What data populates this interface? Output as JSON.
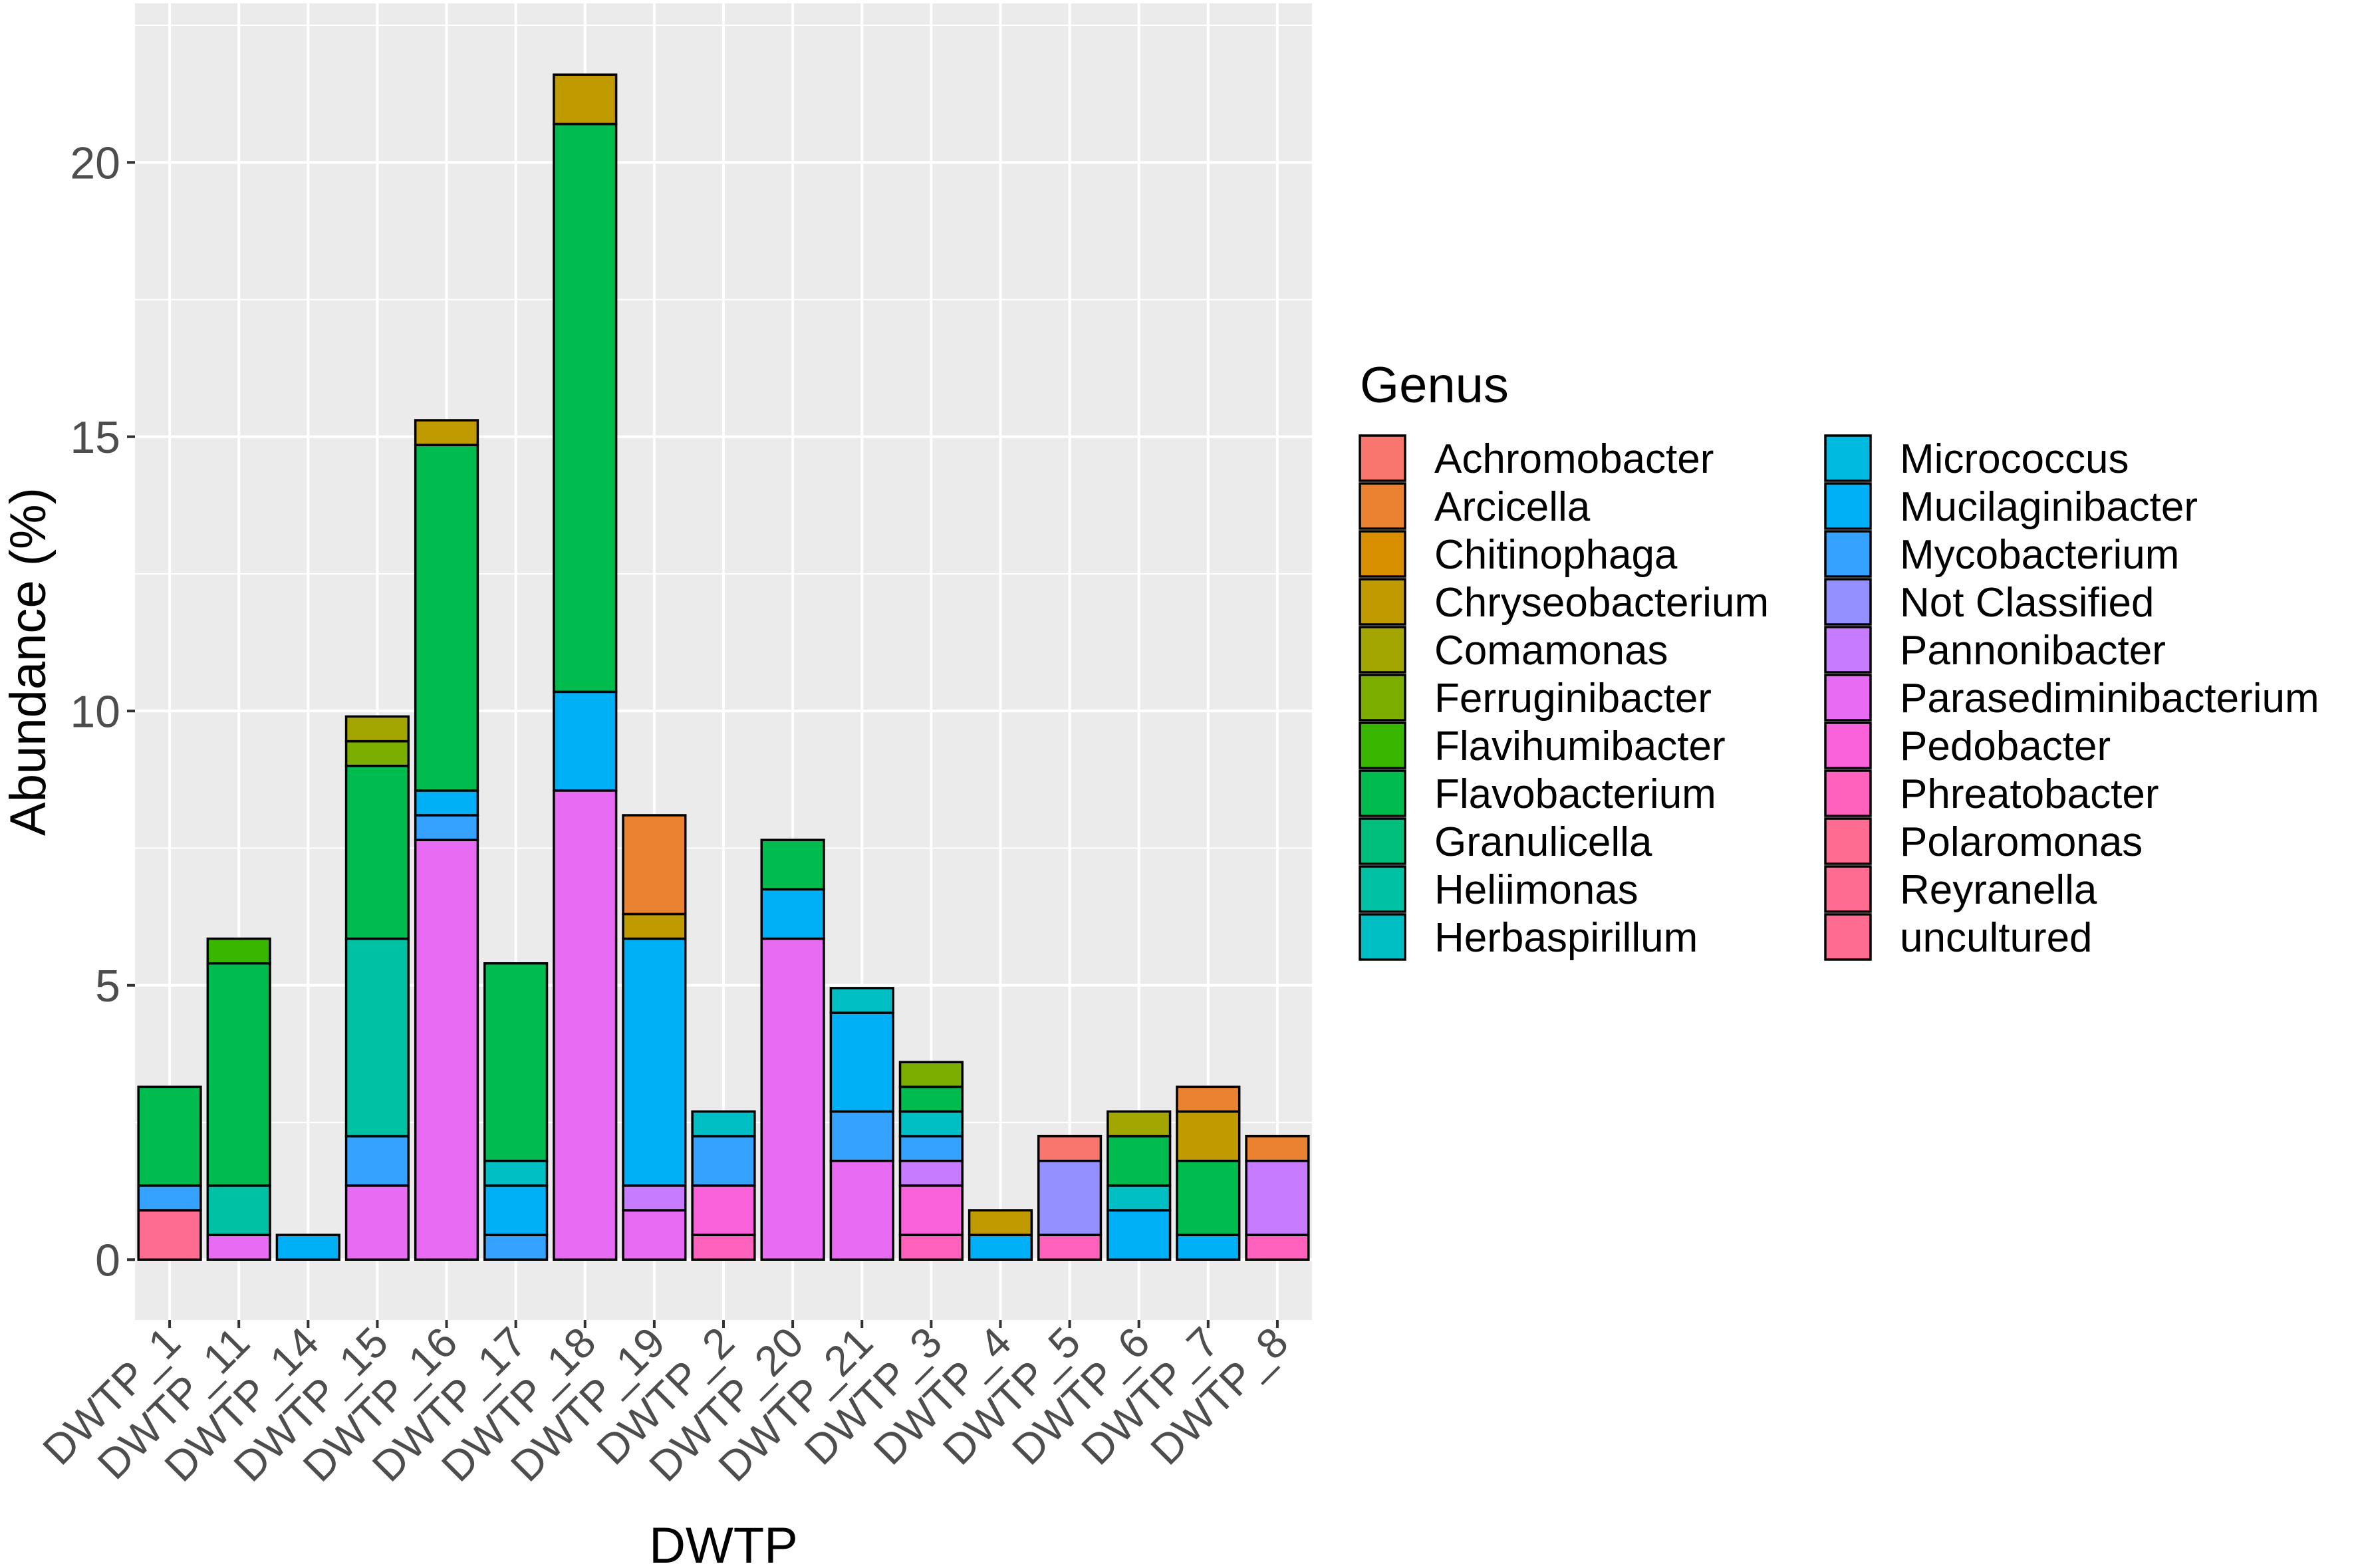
{
  "colors": {
    "panel_background": "#ebebeb",
    "grid_major": "#ffffff",
    "bar_outline": "#000000",
    "axis_text": "#4d4d4d",
    "title_text": "#000000"
  },
  "chart_data": {
    "type": "bar",
    "stacked": true,
    "title": "",
    "xlabel": "DWTP",
    "ylabel": "Abundance (%)",
    "ylim": [
      -1.1,
      22.9
    ],
    "yticks": [
      0,
      5,
      10,
      15,
      20
    ],
    "categories": [
      "DWTP_1",
      "DWTP_11",
      "DWTP_14",
      "DWTP_15",
      "DWTP_16",
      "DWTP_17",
      "DWTP_18",
      "DWTP_19",
      "DWTP_2",
      "DWTP_20",
      "DWTP_21",
      "DWTP_3",
      "DWTP_4",
      "DWTP_5",
      "DWTP_6",
      "DWTP_7",
      "DWTP_8"
    ],
    "legend": {
      "title": "Genus",
      "position": "right",
      "columns": 2
    },
    "series": [
      {
        "name": "Achromobacter",
        "color": "#F8766D",
        "values": [
          0,
          0,
          0,
          0,
          0,
          0,
          0,
          0,
          0,
          0,
          0,
          0,
          0,
          0.45,
          0,
          0,
          0
        ]
      },
      {
        "name": "Arcicella",
        "color": "#EA8331",
        "values": [
          0,
          0,
          0,
          0,
          0,
          0,
          0,
          1.8,
          0,
          0,
          0,
          0,
          0,
          0,
          0,
          0.45,
          0.45
        ]
      },
      {
        "name": "Chitinophaga",
        "color": "#D89000",
        "values": [
          0,
          0,
          0,
          0,
          0,
          0,
          0,
          0,
          0,
          0,
          0,
          0,
          0,
          0,
          0,
          0,
          0
        ]
      },
      {
        "name": "Chryseobacterium",
        "color": "#C09B00",
        "values": [
          0,
          0,
          0,
          0,
          0.45,
          0,
          0.9,
          0.45,
          0,
          0,
          0,
          0,
          0.45,
          0,
          0,
          0.9,
          0
        ]
      },
      {
        "name": "Comamonas",
        "color": "#A3A500",
        "values": [
          0,
          0,
          0,
          0.45,
          0,
          0,
          0,
          0,
          0,
          0,
          0,
          0,
          0,
          0,
          0.45,
          0,
          0
        ]
      },
      {
        "name": "Ferruginibacter",
        "color": "#7CAE00",
        "values": [
          0,
          0,
          0,
          0.45,
          0,
          0,
          0,
          0,
          0,
          0,
          0,
          0.45,
          0,
          0,
          0,
          0,
          0
        ]
      },
      {
        "name": "Flavihumibacter",
        "color": "#39B600",
        "values": [
          0,
          0.45,
          0,
          0,
          0,
          0,
          0,
          0,
          0,
          0,
          0,
          0,
          0,
          0,
          0,
          0,
          0
        ]
      },
      {
        "name": "Flavobacterium",
        "color": "#00BB4E",
        "values": [
          1.8,
          4.05,
          0,
          3.15,
          6.3,
          3.6,
          10.35,
          0,
          0,
          0.9,
          0,
          0.45,
          0,
          0,
          0.9,
          1.35,
          0
        ]
      },
      {
        "name": "Granulicella",
        "color": "#00BF7D",
        "values": [
          0,
          0,
          0,
          0,
          0,
          0,
          0,
          0,
          0,
          0,
          0,
          0,
          0,
          0,
          0,
          0,
          0
        ]
      },
      {
        "name": "Heliimonas",
        "color": "#00C1A3",
        "values": [
          0,
          0.9,
          0,
          3.6,
          0,
          0,
          0,
          0,
          0,
          0,
          0,
          0,
          0,
          0,
          0,
          0,
          0
        ]
      },
      {
        "name": "Herbaspirillum",
        "color": "#00BFC4",
        "values": [
          0,
          0,
          0,
          0,
          0,
          0.45,
          0,
          0,
          0.45,
          0,
          0.45,
          0.45,
          0,
          0,
          0.45,
          0,
          0
        ]
      },
      {
        "name": "Micrococcus",
        "color": "#00BAE0",
        "values": [
          0,
          0,
          0,
          0,
          0,
          0,
          0,
          0,
          0,
          0,
          0,
          0,
          0,
          0,
          0,
          0,
          0
        ]
      },
      {
        "name": "Mucilaginibacter",
        "color": "#00B0F6",
        "values": [
          0,
          0,
          0.45,
          0,
          0.45,
          0.9,
          1.8,
          4.5,
          0,
          0.9,
          1.8,
          0,
          0.45,
          0,
          0.9,
          0.45,
          0
        ]
      },
      {
        "name": "Mycobacterium",
        "color": "#35A2FF",
        "values": [
          0.45,
          0,
          0,
          0.9,
          0.45,
          0.45,
          0,
          0,
          0.9,
          0,
          0.9,
          0.45,
          0,
          0,
          0,
          0,
          0
        ]
      },
      {
        "name": "Not Classified",
        "color": "#9590FF",
        "values": [
          0,
          0,
          0,
          0,
          0,
          0,
          0,
          0,
          0,
          0,
          0,
          0,
          0,
          1.35,
          0,
          0,
          0
        ]
      },
      {
        "name": "Pannonibacter",
        "color": "#C77CFF",
        "values": [
          0,
          0,
          0,
          0,
          0,
          0,
          0,
          0.45,
          0,
          0,
          0,
          0.45,
          0,
          0,
          0,
          0,
          1.35
        ]
      },
      {
        "name": "Parasediminibacterium",
        "color": "#E76BF3",
        "values": [
          0,
          0.45,
          0,
          1.35,
          7.65,
          0,
          8.55,
          0.9,
          0,
          5.85,
          1.8,
          0,
          0,
          0,
          0,
          0,
          0
        ]
      },
      {
        "name": "Pedobacter",
        "color": "#FA62DB",
        "values": [
          0,
          0,
          0,
          0,
          0,
          0,
          0,
          0,
          0.9,
          0,
          0,
          0.9,
          0,
          0,
          0,
          0,
          0
        ]
      },
      {
        "name": "Phreatobacter",
        "color": "#FF62BC",
        "values": [
          0,
          0,
          0,
          0,
          0,
          0,
          0,
          0,
          0.45,
          0,
          0,
          0.45,
          0,
          0.45,
          0,
          0,
          0.45
        ]
      },
      {
        "name": "Polaromonas",
        "color": "#FF6C91",
        "values": [
          0.9,
          0,
          0,
          0,
          0,
          0,
          0,
          0,
          0,
          0,
          0,
          0,
          0,
          0,
          0,
          0,
          0
        ]
      },
      {
        "name": "Reyranella",
        "color": "#FF6C91",
        "values": [
          0,
          0,
          0,
          0,
          0,
          0,
          0,
          0,
          0,
          0,
          0,
          0,
          0,
          0,
          0,
          0,
          0
        ]
      },
      {
        "name": "uncultured",
        "color": "#FF6C91",
        "values": [
          0,
          0,
          0,
          0,
          0,
          0,
          0,
          0,
          0,
          0,
          0,
          0,
          0,
          0,
          0,
          0,
          0
        ]
      }
    ]
  }
}
